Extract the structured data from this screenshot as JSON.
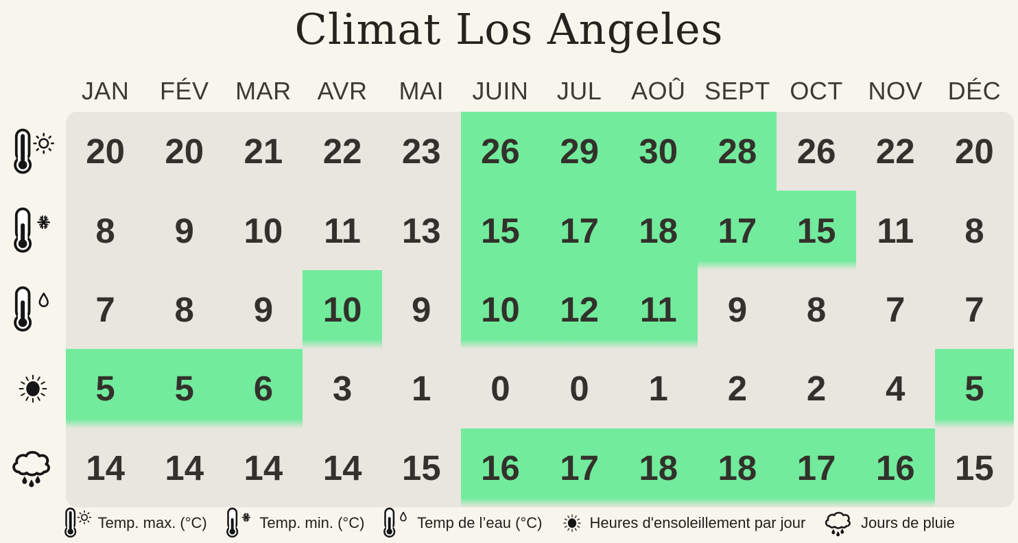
{
  "title": "Climat Los Angeles",
  "legend": {
    "items": [
      {
        "icon": "thermometer-sun-icon",
        "label": "Temp. max. (°C)"
      },
      {
        "icon": "thermometer-snowflake-icon",
        "label": "Temp. min. (°C)"
      },
      {
        "icon": "thermometer-droplet-icon",
        "label": "Temp de l’eau (°C)"
      },
      {
        "icon": "sun-icon",
        "label": "Heures d'ensoleillement par jour"
      },
      {
        "icon": "rain-cloud-icon",
        "label": "Jours de pluie"
      }
    ]
  },
  "chart_data": {
    "type": "table",
    "title": "Climat Los Angeles",
    "categories": [
      "JAN",
      "FÉV",
      "MAR",
      "AVR",
      "MAI",
      "JUIN",
      "JUL",
      "AOÛ",
      "SEPT",
      "OCT",
      "NOV",
      "DÉC"
    ],
    "series": [
      {
        "name": "Temp. max. (°C)",
        "icon": "thermometer-sun-icon",
        "values": [
          20,
          20,
          21,
          22,
          23,
          26,
          29,
          30,
          28,
          26,
          22,
          20
        ],
        "highlighted_columns": [
          5,
          6,
          7,
          8
        ]
      },
      {
        "name": "Temp. min. (°C)",
        "icon": "thermometer-snowflake-icon",
        "values": [
          8,
          9,
          10,
          11,
          13,
          15,
          17,
          18,
          17,
          15,
          11,
          8
        ],
        "highlighted_columns": [
          5,
          6,
          7,
          8,
          9
        ]
      },
      {
        "name": "Temp de l’eau (°C)",
        "icon": "thermometer-droplet-icon",
        "values": [
          7,
          8,
          9,
          10,
          9,
          10,
          12,
          11,
          9,
          8,
          7,
          7
        ],
        "highlighted_columns": [
          3,
          5,
          6,
          7
        ]
      },
      {
        "name": "Heures d'ensoleillement par jour",
        "icon": "sun-icon",
        "values": [
          5,
          5,
          6,
          3,
          1,
          0,
          0,
          1,
          2,
          2,
          4,
          5
        ],
        "highlighted_columns": [
          0,
          1,
          2,
          11
        ]
      },
      {
        "name": "Jours de pluie",
        "icon": "rain-cloud-icon",
        "values": [
          14,
          14,
          14,
          14,
          15,
          16,
          17,
          18,
          18,
          17,
          16,
          15
        ],
        "highlighted_columns": [
          5,
          6,
          7,
          8,
          9,
          10
        ]
      }
    ],
    "colors": {
      "background": "#F8F6EC",
      "cell": "#E8E6DF",
      "highlight": "#72EB9C",
      "text": "#32312B"
    },
    "legend_position": "bottom",
    "grid": false
  }
}
